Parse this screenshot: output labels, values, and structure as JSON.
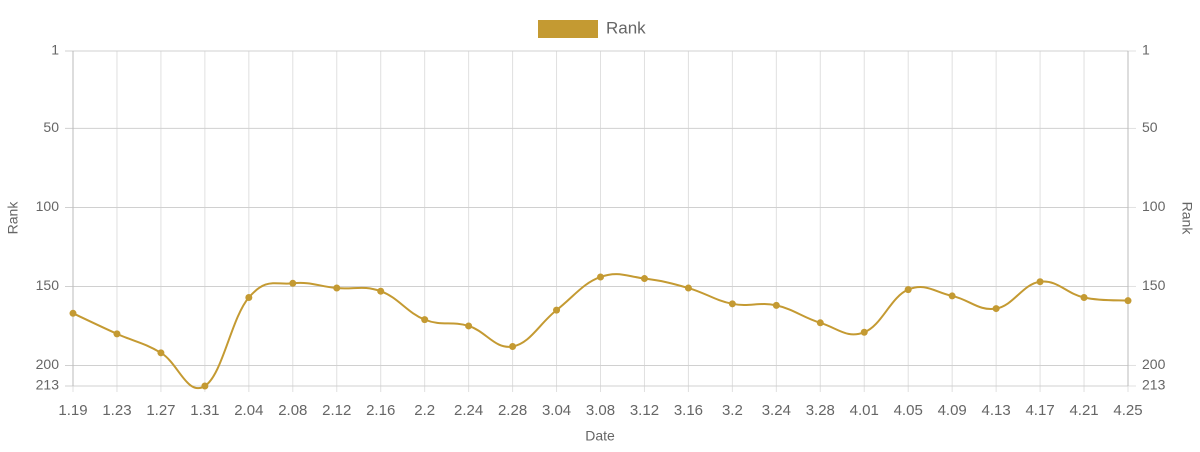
{
  "chart_data": {
    "type": "line",
    "x_label": "Date",
    "y_label": "Rank",
    "y2_label": "Rank",
    "categories": [
      "1.19",
      "1.23",
      "1.27",
      "1.31",
      "2.04",
      "2.08",
      "2.12",
      "2.16",
      "2.2",
      "2.24",
      "2.28",
      "3.04",
      "3.08",
      "3.12",
      "3.16",
      "3.2",
      "3.24",
      "3.28",
      "4.01",
      "4.05",
      "4.09",
      "4.13",
      "4.17",
      "4.21",
      "4.25"
    ],
    "series": [
      {
        "name": "Rank",
        "color": "#c49a32",
        "values": [
          167,
          180,
          192,
          213,
          157,
          148,
          151,
          153,
          171,
          175,
          188,
          165,
          144,
          145,
          151,
          161,
          162,
          173,
          179,
          152,
          156,
          164,
          147,
          157,
          159
        ]
      }
    ],
    "ylim": [
      1,
      213
    ],
    "yticks": [
      1,
      50,
      100,
      150,
      200,
      213
    ],
    "y2lim": [
      1,
      213
    ],
    "y2ticks": [
      1,
      50,
      100,
      150,
      200,
      213
    ],
    "reverse_y": true,
    "grid": true,
    "legend": "top"
  }
}
